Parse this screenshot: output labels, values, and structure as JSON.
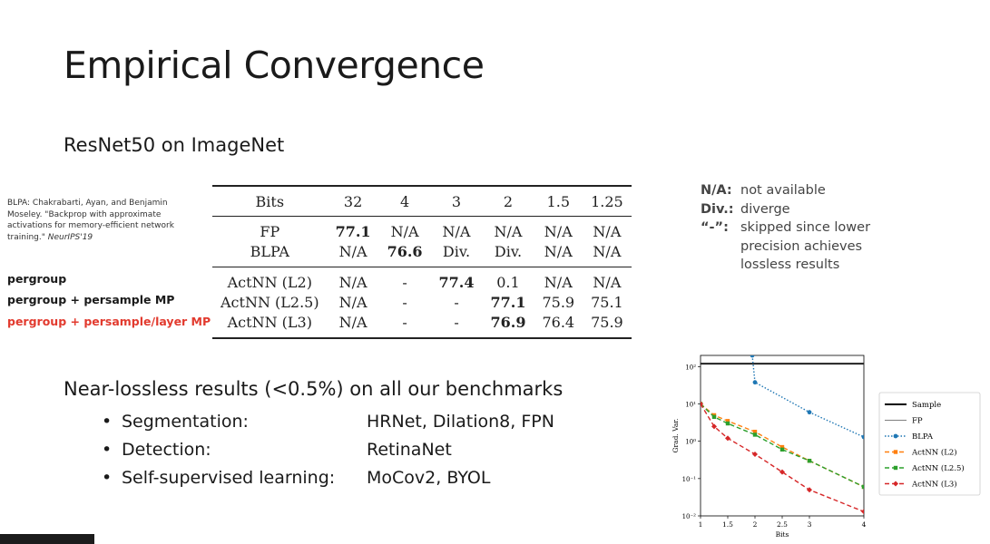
{
  "slide": {
    "title": "Empirical Convergence",
    "subtitle": "ResNet50 on ImageNet",
    "citation": {
      "text": "BLPA: Chakrabarti, Ayan, and Benjamin Moseley. \"Backprop with approximate activations for memory-efficient network training.\"",
      "venue": "NeurIPS'19"
    },
    "configs": [
      "pergroup",
      "pergroup + persample MP",
      "pergroup + persample/layer MP"
    ],
    "table": {
      "header": [
        "Bits",
        "32",
        "4",
        "3",
        "2",
        "1.5",
        "1.25"
      ],
      "rows": [
        {
          "name": "FP",
          "cells": [
            "77.1",
            "N/A",
            "N/A",
            "N/A",
            "N/A",
            "N/A"
          ],
          "bold": [
            0
          ]
        },
        {
          "name": "BLPA",
          "cells": [
            "N/A",
            "76.6",
            "Div.",
            "Div.",
            "N/A",
            "N/A"
          ],
          "bold": [
            1
          ]
        },
        {
          "name": "ActNN (L2)",
          "cells": [
            "N/A",
            "-",
            "77.4",
            "0.1",
            "N/A",
            "N/A"
          ],
          "bold": [
            2
          ]
        },
        {
          "name": "ActNN (L2.5)",
          "cells": [
            "N/A",
            "-",
            "-",
            "77.1",
            "75.9",
            "75.1"
          ],
          "bold": [
            3
          ]
        },
        {
          "name": "ActNN (L3)",
          "cells": [
            "N/A",
            "-",
            "-",
            "76.9",
            "76.4",
            "75.9"
          ],
          "bold": [
            3
          ]
        }
      ]
    },
    "notes": [
      {
        "key": "N/A:",
        "value": "not available"
      },
      {
        "key": "Div.:",
        "value": "diverge"
      },
      {
        "key": "“-”:",
        "value": "skipped since lower precision achieves lossless results"
      }
    ],
    "headline": "Near-lossless results (<0.5%) on all our benchmarks",
    "bullets": [
      {
        "label": "Segmentation:",
        "value": "HRNet, Dilation8, FPN"
      },
      {
        "label": "Detection:",
        "value": "RetinaNet"
      },
      {
        "label": "Self-supervised learning:",
        "value": "MoCov2, BYOL"
      }
    ],
    "bullet_symbol": "•",
    "overlay_text": ""
  },
  "chart_data": {
    "type": "line",
    "xlabel": "Bits",
    "ylabel": "Grad. Var.",
    "yscale": "log",
    "xlim": [
      1,
      4
    ],
    "ylim": [
      0.01,
      200
    ],
    "xticks": [
      1,
      1.5,
      2,
      2.5,
      3,
      4
    ],
    "xtick_labels": [
      "1",
      "1.5",
      "2",
      "2.5",
      "3",
      "4"
    ],
    "yticks": [
      0.01,
      0.1,
      1,
      10,
      100
    ],
    "ytick_labels": [
      "10⁻²",
      "10⁻¹",
      "10⁰",
      "10¹",
      "10²"
    ],
    "legend_position": "right-outside",
    "series": [
      {
        "name": "Sample",
        "color": "#000000",
        "style": "solid",
        "width": 2,
        "marker": "none",
        "x": [
          1,
          4
        ],
        "y": [
          120,
          120
        ]
      },
      {
        "name": "FP",
        "color": "#555555",
        "style": "solid",
        "width": 0.8,
        "marker": "none",
        "x": [
          1,
          4
        ],
        "y": [
          120,
          120
        ]
      },
      {
        "name": "BLPA",
        "color": "#1f77b4",
        "style": "dotted",
        "width": 1.4,
        "marker": "circle",
        "x": [
          1.95,
          2,
          3,
          4
        ],
        "y": [
          200,
          38,
          6,
          1.3
        ]
      },
      {
        "name": "ActNN (L2)",
        "color": "#ff7f0e",
        "style": "dashed",
        "width": 1.4,
        "marker": "square",
        "x": [
          1,
          1.25,
          1.5,
          2,
          2.5,
          3,
          4
        ],
        "y": [
          10,
          5,
          3.5,
          1.8,
          0.7,
          0.3,
          0.06
        ]
      },
      {
        "name": "ActNN (L2.5)",
        "color": "#2ca02c",
        "style": "dashed",
        "width": 1.4,
        "marker": "square",
        "x": [
          1,
          1.25,
          1.5,
          2,
          2.5,
          3,
          4
        ],
        "y": [
          10,
          4.5,
          3,
          1.5,
          0.6,
          0.3,
          0.06
        ]
      },
      {
        "name": "ActNN (L3)",
        "color": "#d62728",
        "style": "dashed",
        "width": 1.4,
        "marker": "diamond",
        "x": [
          1,
          1.25,
          1.5,
          2,
          2.5,
          3,
          4
        ],
        "y": [
          10,
          2.5,
          1.2,
          0.45,
          0.15,
          0.05,
          0.013
        ]
      }
    ]
  }
}
